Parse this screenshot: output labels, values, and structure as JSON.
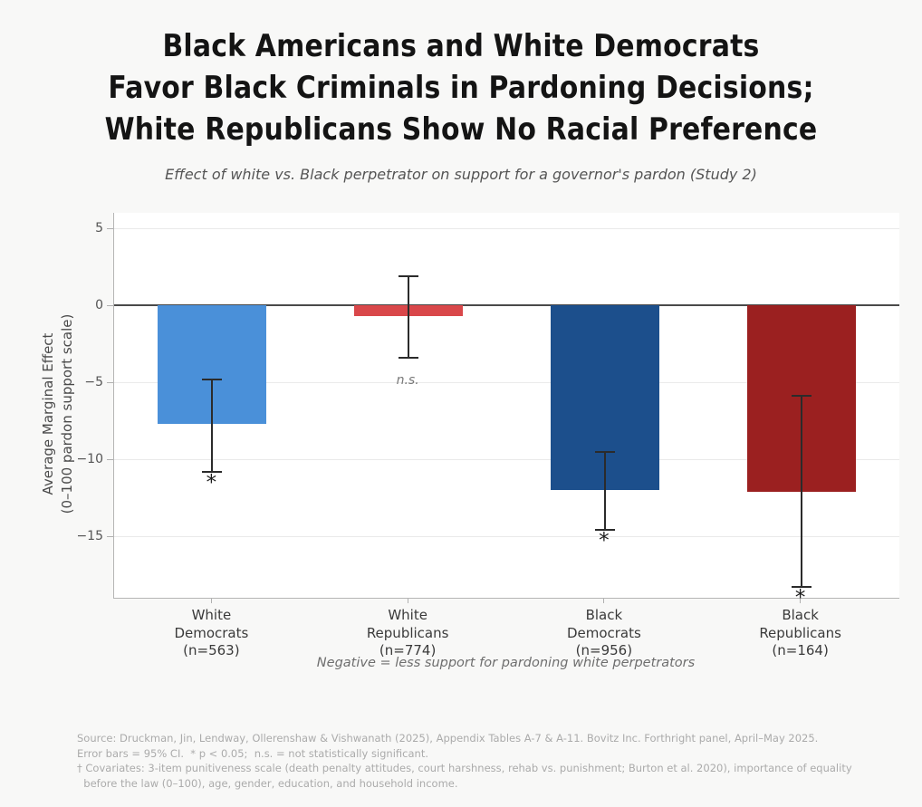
{
  "chart_data": {
    "type": "bar",
    "title": "Black Americans and White Democrats Favor Black Criminals in Pardoning Decisions; White Republicans Show No Racial Preference",
    "title_lines": [
      "Black Americans and White Democrats",
      "Favor Black Criminals in Pardoning Decisions;",
      "White Republicans Show No Racial Preference"
    ],
    "subtitle": "Effect of white vs. Black perpetrator on support for a governor's pardon (Study 2)",
    "ylabel_lines": [
      "Average Marginal Effect",
      "(0–100 pardon support scale)"
    ],
    "xlabel_caption": "Negative = less support for pardoning white perpetrators",
    "ylim": [
      -19,
      6
    ],
    "yticks": [
      5,
      0,
      -5,
      -10,
      -15
    ],
    "grid": true,
    "zero_line": true,
    "legend": "none",
    "categories": [
      {
        "label_lines": [
          "White",
          "Democrats",
          "(n=563)"
        ],
        "value": -7.7,
        "ci_low": -10.8,
        "ci_high": -4.8,
        "sig": "*",
        "color": "#4a90d9"
      },
      {
        "label_lines": [
          "White",
          "Republicans",
          "(n=774)"
        ],
        "value": -0.7,
        "ci_low": -3.4,
        "ci_high": 1.9,
        "sig": "n.s.",
        "color": "#d9474a"
      },
      {
        "label_lines": [
          "Black",
          "Democrats",
          "(n=956)"
        ],
        "value": -12.0,
        "ci_low": -14.6,
        "ci_high": -9.5,
        "sig": "*",
        "color": "#1c4f8c"
      },
      {
        "label_lines": [
          "Black",
          "Republicans",
          "(n=164)"
        ],
        "value": -12.1,
        "ci_low": -18.3,
        "ci_high": -5.9,
        "sig": "*",
        "color": "#9b2020"
      }
    ],
    "footnotes": [
      "Source: Druckman, Jin, Lendway, Ollerenshaw & Vishwanath (2025), Appendix Tables A-7 & A-11. Bovitz Inc. Forthright panel, April–May 2025.",
      "Error bars = 95% CI.  * p < 0.05;  n.s. = not statistically significant.",
      "† Covariates: 3-item punitiveness scale (death penalty attitudes, court harshness, rehab vs. punishment; Burton et al. 2020), importance of equality",
      "  before the law (0–100), age, gender, education, and household income."
    ],
    "colors": {
      "figure_bg": "#f8f8f7",
      "plot_bg": "#ffffff",
      "grid": "#eaeaea",
      "zero_line": "#4a4a4a",
      "spine": "#b5b5b5",
      "error_bar": "#2b2b2b",
      "title": "#141414",
      "subtitle": "#555555",
      "tick_label": "#555555",
      "x_label": "#3a3a3a",
      "caption": "#6e6e6e",
      "footnote": "#ababab",
      "ns_label": "#787878",
      "sig_star": "#1a1a1a"
    }
  }
}
